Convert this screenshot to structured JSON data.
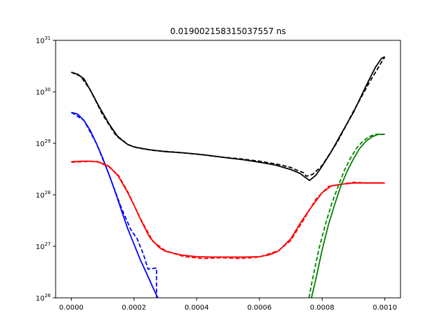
{
  "chart_data": {
    "type": "line",
    "title": "0.019002158315037557 ns",
    "xlabel": "",
    "ylabel": "",
    "xlim": [
      -5e-05,
      0.00105
    ],
    "ylim": [
      1e+26,
      1e+31
    ],
    "yscale": "log",
    "grid": false,
    "x_ticks": [
      0.0,
      0.0002,
      0.0004,
      0.0006,
      0.0008,
      0.001
    ],
    "x_tick_labels": [
      "0.0000",
      "0.0002",
      "0.0004",
      "0.0006",
      "0.0008",
      "0.0010"
    ],
    "y_ticks": [
      1e+26,
      1e+27,
      1e+28,
      1e+29,
      1e+30,
      1e+31
    ],
    "y_tick_labels": [
      {
        "base": "10",
        "exp": "26"
      },
      {
        "base": "10",
        "exp": "27"
      },
      {
        "base": "10",
        "exp": "28"
      },
      {
        "base": "10",
        "exp": "29"
      },
      {
        "base": "10",
        "exp": "30"
      },
      {
        "base": "10",
        "exp": "31"
      }
    ],
    "series": [
      {
        "color": "#000000",
        "dash": "solid",
        "x": [
          0.0,
          2e-05,
          4e-05,
          6e-05,
          9e-05,
          0.00012,
          0.00015,
          0.00018,
          0.0002,
          0.00025,
          0.0003,
          0.00035,
          0.0004,
          0.00045,
          0.0005,
          0.00055,
          0.0006,
          0.00065,
          0.0007,
          0.00073,
          0.00075,
          0.00076,
          0.00078,
          0.0008,
          0.00083,
          0.00086,
          0.0009,
          0.00094,
          0.00097,
          0.00099,
          0.001
        ],
        "y": [
          2.4e+30,
          2.2e+30,
          1.8e+30,
          1.1e+30,
          5e+29,
          2.4e+29,
          1.3e+29,
          9.5e+28,
          8.5e+28,
          7.5e+28,
          6.9e+28,
          6.6e+28,
          6.2e+28,
          5.7e+28,
          5.2e+28,
          4.8e+28,
          4.3e+28,
          3.8e+28,
          3.1e+28,
          2.6e+28,
          2.1e+28,
          1.9e+28,
          2.4e+28,
          3.6e+28,
          7e+28,
          1.5e+29,
          4e+29,
          1.3e+30,
          3e+30,
          4.5e+30,
          4.8e+30
        ]
      },
      {
        "color": "#000000",
        "dash": "dashed",
        "x": [
          0.0,
          3e-05,
          6e-05,
          0.0001,
          0.00014,
          0.00018,
          0.00021,
          0.00026,
          0.0003,
          0.00036,
          0.00042,
          0.00048,
          0.00054,
          0.0006,
          0.00066,
          0.0007,
          0.00072,
          0.00074,
          0.00075,
          0.00077,
          0.0008,
          0.00085,
          0.0009,
          0.00095,
          0.001
        ],
        "y": [
          2.4e+30,
          2e+30,
          1.1e+30,
          3.6e+29,
          1.5e+29,
          9.5e+28,
          8.2e+28,
          7.3e+28,
          7e+28,
          6.5e+28,
          6e+28,
          5.4e+28,
          5e+28,
          4.5e+28,
          3.9e+28,
          3.4e+28,
          3e+28,
          2.7e+28,
          2.3e+28,
          2.5e+28,
          3.7e+28,
          1.1e+29,
          4.2e+29,
          1.5e+30,
          4.8e+30
        ]
      },
      {
        "color": "#0000ff",
        "dash": "solid",
        "x": [
          0.0,
          2e-05,
          4e-05,
          6e-05,
          8e-05,
          0.0001,
          0.00012,
          0.00014,
          0.00016,
          0.00018,
          0.0002,
          0.00022,
          0.00024,
          0.00026,
          0.000276
        ],
        "y": [
          4e+29,
          3.7e+29,
          2.8e+29,
          1.8e+29,
          1e+29,
          5.2e+28,
          2.5e+28,
          1.15e+28,
          5e+27,
          2.2e+27,
          1.1e+27,
          5.5e+26,
          3e+26,
          1.6e+26,
          1e+26
        ]
      },
      {
        "color": "#0000ff",
        "dash": "dashed",
        "x": [
          0.0,
          4e-05,
          8e-05,
          0.00012,
          0.00016,
          0.00019,
          0.00021,
          0.00023,
          0.000245,
          0.000272,
          0.000272
        ],
        "y": [
          4e+29,
          2.8e+29,
          1e+29,
          2.5e+28,
          5.5e+27,
          2.1e+27,
          1.4e+27,
          7e+26,
          3.6e+26,
          3.8e+26,
          1e+26
        ]
      },
      {
        "color": "#ff0000",
        "dash": "solid",
        "x": [
          0.0,
          3e-05,
          6e-05,
          9e-05,
          0.00012,
          0.00015,
          0.00018,
          0.0002,
          0.00022,
          0.00025,
          0.00028,
          0.0003,
          0.00035,
          0.0004,
          0.00045,
          0.0005,
          0.00055,
          0.0006,
          0.00063,
          0.00066,
          0.0007,
          0.00073,
          0.00076,
          0.0008,
          0.00083,
          0.00086,
          0.0009,
          0.00095,
          0.001
        ],
        "y": [
          4.4e+28,
          4.5e+28,
          4.5e+28,
          4.3e+28,
          3.6e+28,
          2.3e+28,
          1.1e+28,
          6.3e+27,
          3.4e+27,
          1.5e+27,
          9.5e+26,
          8e+26,
          6.8e+26,
          6.3e+26,
          6.2e+26,
          6.2e+26,
          6.2e+26,
          6.3e+26,
          6.8e+26,
          8e+26,
          1.4e+27,
          2.8e+27,
          5.2e+27,
          1.1e+28,
          1.5e+28,
          1.6e+28,
          1.7e+28,
          1.7e+28,
          1.7e+28
        ]
      },
      {
        "color": "#ff0000",
        "dash": "dashed",
        "x": [
          0.0,
          4e-05,
          8e-05,
          0.00012,
          0.00015,
          0.00018,
          0.00022,
          0.00026,
          0.0003,
          0.00036,
          0.00042,
          0.00048,
          0.00054,
          0.0006,
          0.00066,
          0.0007,
          0.00074,
          0.00078,
          0.00082,
          0.00086,
          0.0009,
          0.00095,
          0.001
        ],
        "y": [
          4.3e+28,
          4.4e+28,
          4.5e+28,
          3.5e+28,
          2.4e+28,
          1.15e+28,
          3.5e+27,
          1.25e+27,
          8.2e+26,
          6.3e+26,
          5.8e+26,
          6e+26,
          5.8e+26,
          6.2e+26,
          8.2e+26,
          1.3e+27,
          3.2e+27,
          8.2e+27,
          1.45e+28,
          1.6e+28,
          1.75e+28,
          1.7e+28,
          1.7e+28
        ]
      },
      {
        "color": "#008000",
        "dash": "solid",
        "x": [
          0.000766,
          0.00078,
          0.0008,
          0.00082,
          0.00084,
          0.00086,
          0.00088,
          0.0009,
          0.00092,
          0.00094,
          0.00096,
          0.00098,
          0.001
        ],
        "y": [
          1e+26,
          2.3e+26,
          8.5e+26,
          2.6e+27,
          6.5e+27,
          1.5e+28,
          2.9e+28,
          5e+28,
          8e+28,
          1.1e+29,
          1.35e+29,
          1.5e+29,
          1.5e+29
        ]
      },
      {
        "color": "#008000",
        "dash": "dashed",
        "x": [
          0.000758,
          0.00077,
          0.00079,
          0.00081,
          0.00083,
          0.00085,
          0.00087,
          0.00089,
          0.00091,
          0.00093,
          0.00095,
          0.00097,
          0.001
        ],
        "y": [
          1e+26,
          2.4e+26,
          9e+26,
          2.6e+27,
          6.6e+27,
          1.4e+28,
          2.9e+28,
          5.1e+28,
          8.1e+28,
          1.1e+29,
          1.35e+29,
          1.5e+29,
          1.5e+29
        ]
      }
    ]
  }
}
